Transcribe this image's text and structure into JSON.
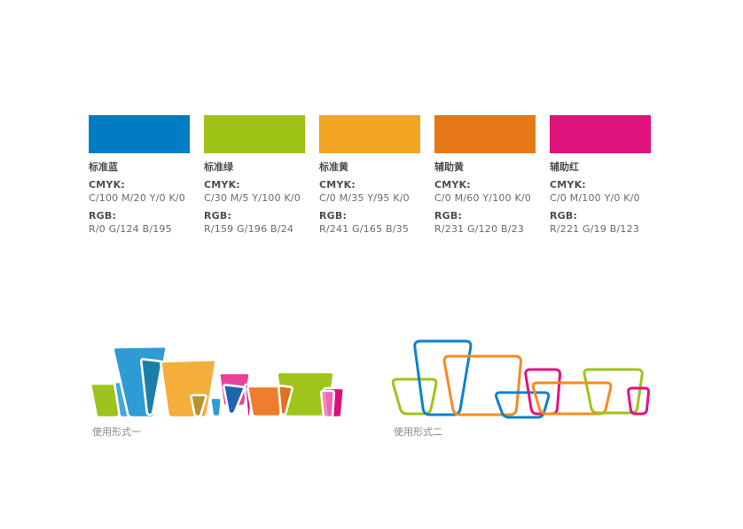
{
  "page": {
    "background": "#ffffff"
  },
  "palette": {
    "labels": {
      "cmyk": "CMYK:",
      "rgb": "RGB:"
    },
    "swatches": [
      {
        "name": "标准蓝",
        "hex": "#007CC3",
        "cmyk": "C/100 M/20 Y/0 K/0",
        "rgb": "R/0 G/124 B/195"
      },
      {
        "name": "标准绿",
        "hex": "#9FC418",
        "cmyk": "C/30 M/5 Y/100 K/0",
        "rgb": "R/159 G/196 B/24"
      },
      {
        "name": "标准黄",
        "hex": "#F1A523",
        "cmyk": "C/0 M/35 Y/95 K/0",
        "rgb": "R/241 G/165 B/35"
      },
      {
        "name": "辅助黄",
        "hex": "#E77817",
        "cmyk": "C/0 M/60 Y/100 K/0",
        "rgb": "R/231 G/120 B/23"
      },
      {
        "name": "辅助红",
        "hex": "#DD137B",
        "cmyk": "C/0 M/100 Y/0 K/0",
        "rgb": "R/221 G/19 B/123"
      }
    ]
  },
  "usage_examples": {
    "form1_label": "使用形式一",
    "form2_label": "使用形式二"
  }
}
